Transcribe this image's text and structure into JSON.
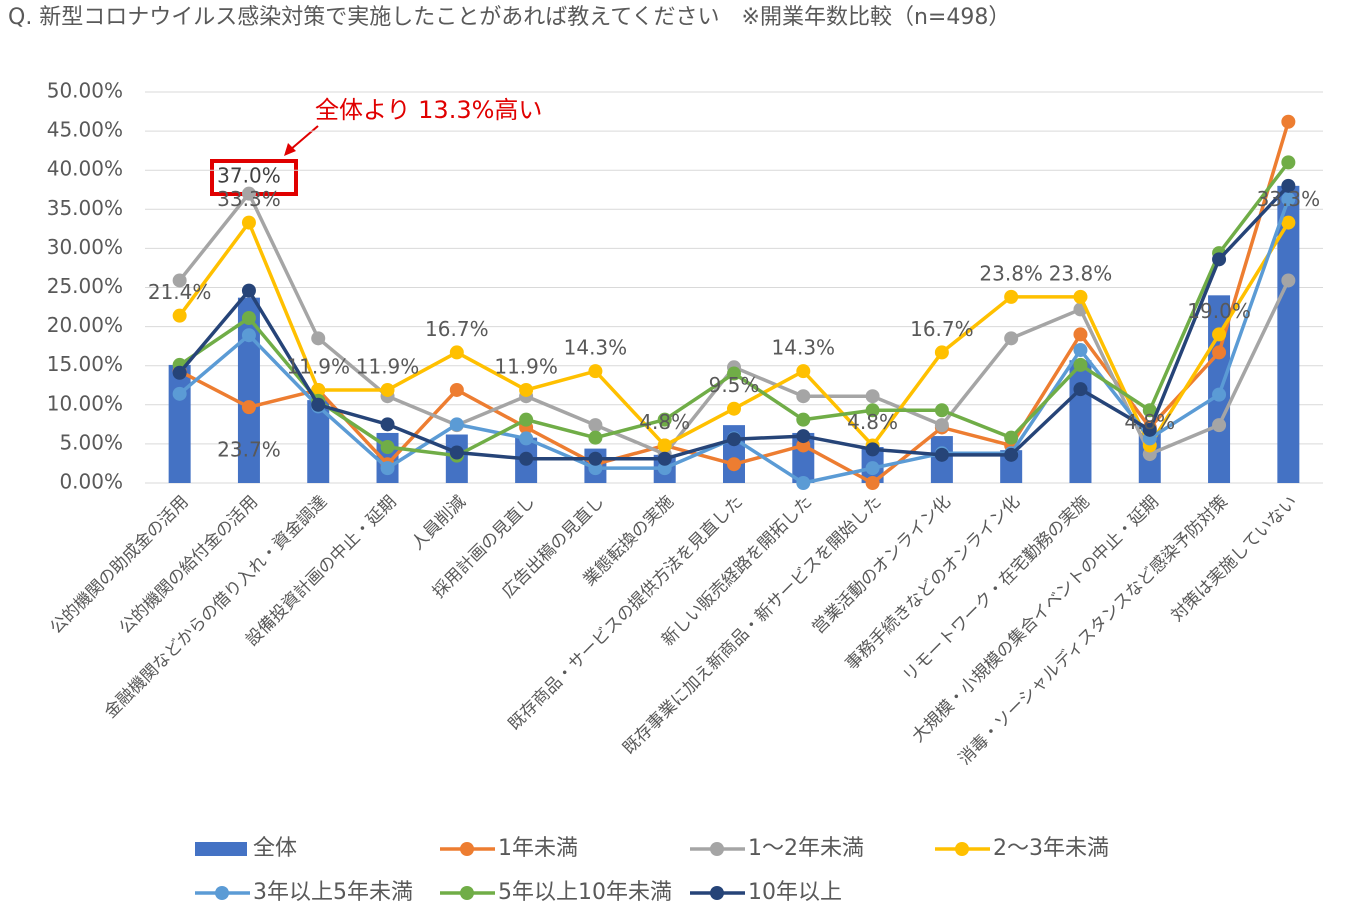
{
  "chart_data": {
    "type": "bar_line",
    "title": "Q. 新型コロナウイルス感染対策で実施したことがあれば教えてください　※開業年数比較（n=498）",
    "annotation": "全体より 13.3%高い",
    "categories": [
      "公的機関の助成金の活用",
      "公的機関の給付金の活用",
      "金融機関などからの借り入れ・資金調達",
      "設備投資計画の中止・延期",
      "人員削減",
      "採用計画の見直し",
      "広告出稿の見直し",
      "業態転換の実施",
      "既存商品・サービスの提供方法を見直した",
      "新しい販売経路を開拓した",
      "既存事業に加え新商品・新サービスを開始した",
      "営業活動のオンライン化",
      "事務手続きなどのオンライン化",
      "リモートワーク・在宅勤務の実施",
      "大規模・小規模の集合イベントの中止・延期",
      "消毒・ソーシャルディスタンスなど感染予防対策",
      "対策は実施していない"
    ],
    "series": [
      {
        "name": "全体",
        "kind": "bar",
        "color": "#4472c4",
        "values": [
          15.1,
          23.7,
          10.6,
          6.4,
          6.2,
          5.8,
          4.4,
          3.6,
          7.4,
          6.4,
          4.6,
          6.0,
          4.2,
          15.7,
          6.4,
          24.0,
          38.0
        ],
        "value_labels": [
          null,
          "23.7%",
          null,
          null,
          null,
          null,
          null,
          null,
          null,
          null,
          null,
          null,
          null,
          null,
          null,
          null,
          null
        ]
      },
      {
        "name": "1年未満",
        "kind": "line",
        "color": "#ed7d31",
        "values": [
          14.3,
          9.7,
          11.9,
          2.4,
          11.9,
          7.1,
          2.4,
          4.8,
          2.4,
          4.8,
          0,
          7.1,
          4.8,
          19.0,
          7.1,
          16.7,
          46.2
        ]
      },
      {
        "name": "1～2年未満",
        "kind": "line",
        "color": "#a5a5a5",
        "values": [
          25.9,
          37.0,
          18.5,
          11.1,
          7.4,
          11.1,
          7.4,
          3.7,
          14.8,
          11.1,
          11.1,
          7.4,
          18.5,
          22.2,
          3.7,
          7.4,
          25.9
        ],
        "value_labels": [
          null,
          "37.0%",
          null,
          null,
          null,
          null,
          null,
          null,
          null,
          null,
          null,
          null,
          null,
          null,
          null,
          null,
          null
        ]
      },
      {
        "name": "2～3年未満",
        "kind": "line",
        "color": "#ffc000",
        "values": [
          21.4,
          33.3,
          11.9,
          11.9,
          16.7,
          11.9,
          14.3,
          4.8,
          9.5,
          14.3,
          4.8,
          16.7,
          23.8,
          23.8,
          4.8,
          19.0,
          33.3
        ],
        "value_labels": [
          "21.4%",
          "33.3%",
          "11.9%",
          "11.9%",
          "16.7%",
          "11.9%",
          "14.3%",
          "4.8%",
          "9.5%",
          "14.3%",
          "4.8%",
          "16.7%",
          "23.8%",
          "23.8%",
          "4.8%",
          "19.0%",
          "33.3%"
        ]
      },
      {
        "name": "3年以上5年未満",
        "kind": "line",
        "color": "#5b9bd5",
        "values": [
          11.4,
          18.9,
          9.8,
          1.9,
          7.5,
          5.7,
          1.9,
          1.9,
          5.7,
          0,
          1.9,
          3.8,
          3.8,
          17.0,
          5.7,
          11.3,
          36.3
        ]
      },
      {
        "name": "5年以上10年未満",
        "kind": "line",
        "color": "#70ad47",
        "values": [
          15.1,
          21.1,
          10.5,
          4.6,
          3.5,
          8.1,
          5.8,
          8.1,
          14.0,
          8.1,
          9.3,
          9.3,
          5.8,
          15.1,
          9.3,
          29.4,
          41.0
        ]
      },
      {
        "name": "10年以上",
        "kind": "line",
        "color": "#264478",
        "values": [
          14.1,
          24.6,
          10.0,
          7.5,
          3.9,
          3.1,
          3.1,
          3.1,
          5.6,
          6.0,
          4.3,
          3.6,
          3.6,
          12.0,
          6.8,
          28.6,
          38.0
        ]
      }
    ],
    "ylim": [
      0,
      50
    ],
    "yticks": [
      {
        "value": 0,
        "label": "0.00%"
      },
      {
        "value": 5,
        "label": "5.00%"
      },
      {
        "value": 10,
        "label": "10.00%"
      },
      {
        "value": 15,
        "label": "15.00%"
      },
      {
        "value": 20,
        "label": "20.00%"
      },
      {
        "value": 25,
        "label": "25.00%"
      },
      {
        "value": 30,
        "label": "30.00%"
      },
      {
        "value": 35,
        "label": "35.00%"
      },
      {
        "value": 40,
        "label": "40.00%"
      },
      {
        "value": 45,
        "label": "45.00%"
      },
      {
        "value": 50,
        "label": "50.00%"
      }
    ],
    "grid": true
  }
}
